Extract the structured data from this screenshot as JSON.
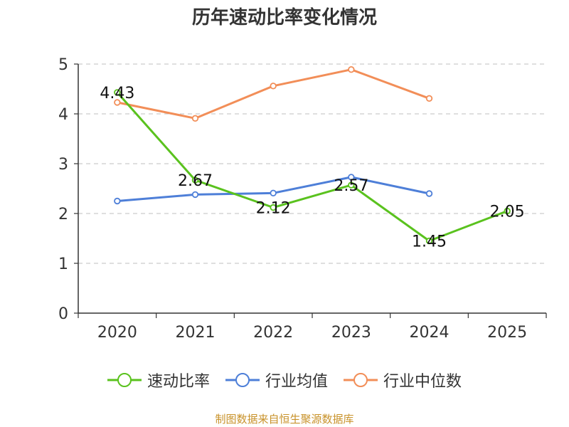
{
  "chart_data": {
    "type": "line",
    "title": "历年速动比率变化情况",
    "categories": [
      "2020",
      "2021",
      "2022",
      "2023",
      "2024",
      "2025"
    ],
    "ylim": [
      0,
      5
    ],
    "yticks": [
      "0",
      "1",
      "2",
      "3",
      "4",
      "5"
    ],
    "grid": true,
    "legend_position": "bottom",
    "series": [
      {
        "name": "速动比率",
        "color": "#5ac21e",
        "values": [
          4.43,
          2.67,
          2.12,
          2.57,
          1.45,
          2.05
        ],
        "labels": [
          "4.43",
          "2.67",
          "2.12",
          "2.57",
          "1.45",
          "2.05"
        ]
      },
      {
        "name": "行业均值",
        "color": "#4e7fd8",
        "values": [
          2.25,
          2.38,
          2.41,
          2.73,
          2.4,
          null
        ]
      },
      {
        "name": "行业中位数",
        "color": "#f28e58",
        "values": [
          4.23,
          3.91,
          4.56,
          4.89,
          4.31,
          null
        ]
      }
    ]
  },
  "footer": {
    "source": "制图数据来自恒生聚源数据库"
  }
}
